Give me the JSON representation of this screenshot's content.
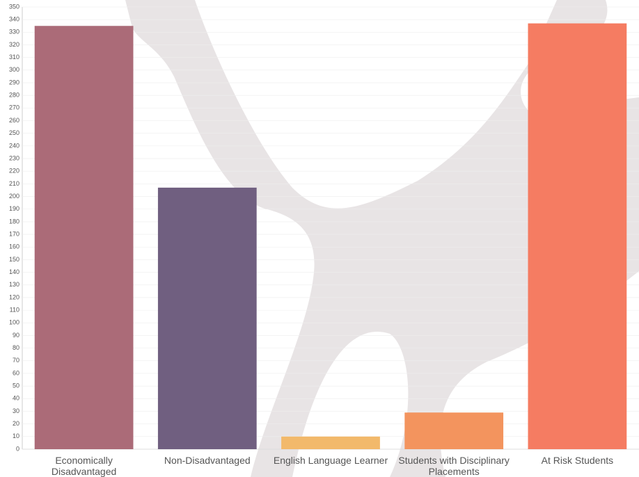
{
  "chart_data": {
    "type": "bar",
    "categories": [
      "Economically Disadvantaged",
      "Non-Disadvantaged",
      "English Language Learner",
      "Students with Disciplinary Placements",
      "At Risk Students"
    ],
    "values": [
      335,
      207,
      10,
      29,
      337
    ],
    "colors": [
      "#a86674",
      "#6b5a7c",
      "#f2b766",
      "#f39159",
      "#f5785d"
    ],
    "ylim": [
      0,
      350
    ],
    "yticks": [
      0,
      10,
      20,
      30,
      40,
      50,
      60,
      70,
      80,
      90,
      100,
      110,
      120,
      130,
      140,
      150,
      160,
      170,
      180,
      190,
      200,
      210,
      220,
      230,
      240,
      250,
      260,
      270,
      280,
      290,
      300,
      310,
      320,
      330,
      340,
      350
    ],
    "grid": true
  }
}
